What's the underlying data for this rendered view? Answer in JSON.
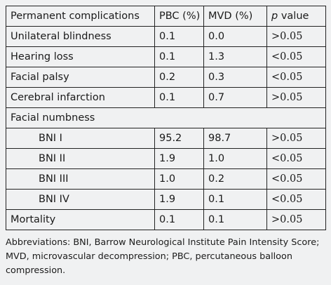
{
  "table": {
    "headers": [
      "Permanent complications",
      "PBC (%)",
      "MVD (%)",
      "value"
    ],
    "pvalue_prefix": "p",
    "rows_top": [
      {
        "label": "Unilateral blindness",
        "pbc": "0.1",
        "mvd": "0.0",
        "p": ">0.05"
      },
      {
        "label": "Hearing loss",
        "pbc": "0.1",
        "mvd": "1.3",
        "p": "<0.05"
      },
      {
        "label": "Facial palsy",
        "pbc": "0.2",
        "mvd": "0.3",
        "p": "<0.05"
      },
      {
        "label": "Cerebral infarction",
        "pbc": "0.1",
        "mvd": "0.7",
        "p": ">0.05"
      }
    ],
    "section_label": "Facial numbness",
    "rows_sub": [
      {
        "label": "BNI I",
        "pbc": "95.2",
        "mvd": "98.7",
        "p": ">0.05"
      },
      {
        "label": "BNI II",
        "pbc": "1.9",
        "mvd": "1.0",
        "p": "<0.05"
      },
      {
        "label": "BNI III",
        "pbc": "1.0",
        "mvd": "0.2",
        "p": "<0.05"
      },
      {
        "label": "BNI IV",
        "pbc": "1.9",
        "mvd": "0.1",
        "p": "<0.05"
      }
    ],
    "rows_bottom": [
      {
        "label": "Mortality",
        "pbc": "0.1",
        "mvd": "0.1",
        "p": ">0.05"
      }
    ]
  },
  "footnote": "Abbreviations: BNI, Barrow Neurological Institute Pain Intensity Score; MVD, microvascular decompression; PBC, percutaneous balloon compression."
}
